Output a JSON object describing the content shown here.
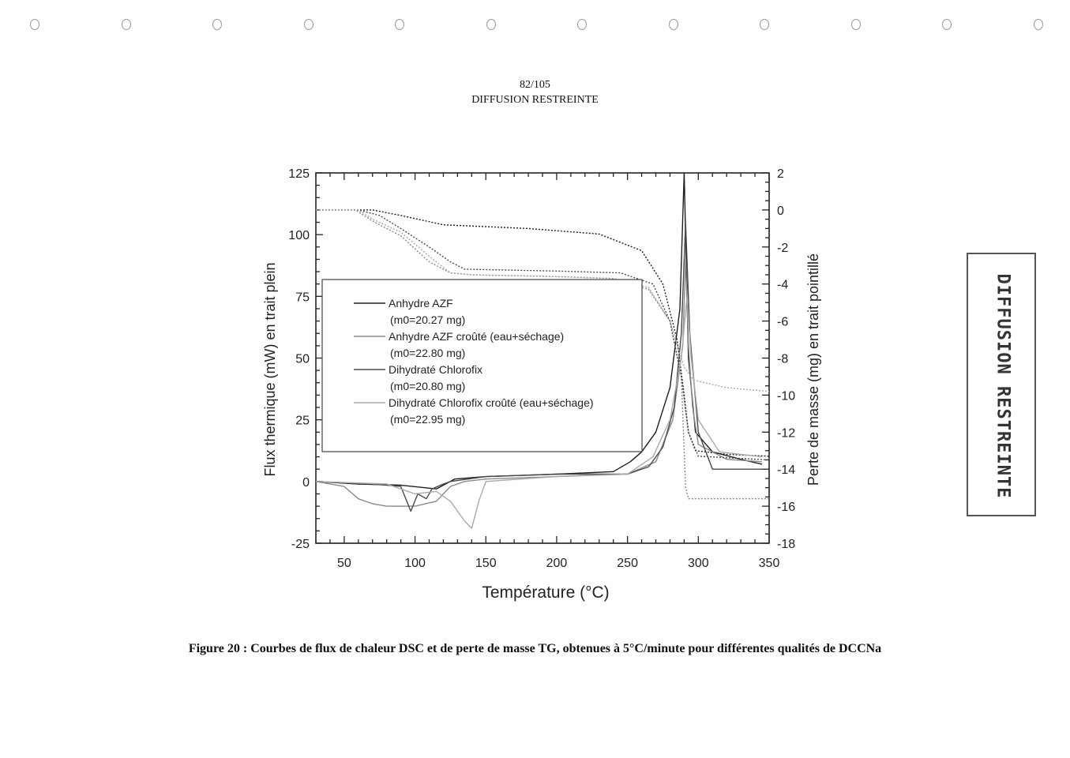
{
  "page": {
    "number": "82/105",
    "header": "DIFFUSION RESTREINTE",
    "stamp": "DIFFUSION RESTREINTE",
    "caption": "Figure 20 : Courbes de flux de chaleur DSC et de perte de masse TG, obtenues à 5°C/minute pour différentes qualités de DCCNa"
  },
  "chart_data": {
    "type": "line",
    "xlabel": "Température (°C)",
    "ylabel_left": "Flux thermique (mW) en trait plein",
    "ylabel_right": "Perte de masse (mg) en trait pointillé",
    "xlim": [
      30,
      350
    ],
    "ylim_left": [
      -25,
      125
    ],
    "ylim_right": [
      -18,
      2
    ],
    "x_ticks": [
      50,
      100,
      150,
      200,
      250,
      300,
      350
    ],
    "y_left_ticks": [
      -25,
      0,
      25,
      50,
      75,
      100,
      125
    ],
    "y_right_ticks": [
      -18,
      -16,
      -14,
      -12,
      -10,
      -8,
      -6,
      -4,
      -2,
      0,
      2
    ],
    "grid": false,
    "legend_position": "center",
    "series": [
      {
        "name": "Anhydre AZF",
        "sample_mass": "(m0=20.27 mg)",
        "color": "#1e1e1e",
        "dsc": [
          [
            30,
            0
          ],
          [
            60,
            -1
          ],
          [
            90,
            -1.5
          ],
          [
            115,
            -3
          ],
          [
            128,
            1
          ],
          [
            150,
            2
          ],
          [
            200,
            3
          ],
          [
            240,
            4
          ],
          [
            252,
            8
          ],
          [
            260,
            12
          ],
          [
            270,
            20
          ],
          [
            280,
            38
          ],
          [
            287,
            70
          ],
          [
            290,
            125
          ],
          [
            293,
            50
          ],
          [
            298,
            20
          ],
          [
            310,
            12
          ],
          [
            330,
            9
          ],
          [
            345,
            7
          ]
        ],
        "tg": [
          [
            30,
            0
          ],
          [
            70,
            0
          ],
          [
            90,
            -0.3
          ],
          [
            120,
            -0.8
          ],
          [
            180,
            -1
          ],
          [
            230,
            -1.3
          ],
          [
            260,
            -2.2
          ],
          [
            275,
            -4
          ],
          [
            285,
            -7
          ],
          [
            290,
            -10
          ],
          [
            293,
            -12
          ],
          [
            298,
            -13
          ],
          [
            320,
            -13.2
          ],
          [
            350,
            -13.3
          ]
        ]
      },
      {
        "name": "Anhydre AZF croûté (eau+séchage)",
        "sample_mass": "(m0=22.80 mg)",
        "color": "#8a8a8a",
        "dsc": [
          [
            30,
            0
          ],
          [
            50,
            -2
          ],
          [
            60,
            -7
          ],
          [
            70,
            -9
          ],
          [
            80,
            -10
          ],
          [
            100,
            -10
          ],
          [
            115,
            -8
          ],
          [
            125,
            -2
          ],
          [
            135,
            0
          ],
          [
            150,
            1
          ],
          [
            200,
            2
          ],
          [
            250,
            3
          ],
          [
            270,
            8
          ],
          [
            282,
            25
          ],
          [
            289,
            55
          ],
          [
            291,
            90
          ],
          [
            293,
            55
          ],
          [
            296,
            30
          ],
          [
            300,
            15
          ],
          [
            320,
            9
          ],
          [
            345,
            8
          ]
        ],
        "tg": [
          [
            30,
            0
          ],
          [
            58,
            0
          ],
          [
            70,
            -0.6
          ],
          [
            90,
            -1.4
          ],
          [
            110,
            -2.8
          ],
          [
            125,
            -3.4
          ],
          [
            140,
            -3.5
          ],
          [
            200,
            -3.6
          ],
          [
            240,
            -3.7
          ],
          [
            265,
            -4.3
          ],
          [
            280,
            -6
          ],
          [
            288,
            -9
          ],
          [
            291,
            -15
          ],
          [
            293,
            -15.6
          ],
          [
            350,
            -15.6
          ]
        ]
      },
      {
        "name": "Dihydraté Chlorofix",
        "sample_mass": "(m0=20.80 mg)",
        "color": "#4a4a4a",
        "dsc": [
          [
            30,
            0
          ],
          [
            70,
            -1
          ],
          [
            90,
            -2
          ],
          [
            97,
            -12
          ],
          [
            102,
            -5
          ],
          [
            108,
            -7
          ],
          [
            112,
            -3
          ],
          [
            120,
            -1
          ],
          [
            125,
            0
          ],
          [
            150,
            2
          ],
          [
            200,
            3
          ],
          [
            250,
            3
          ],
          [
            265,
            6
          ],
          [
            275,
            14
          ],
          [
            283,
            30
          ],
          [
            288,
            60
          ],
          [
            291,
            105
          ],
          [
            294,
            60
          ],
          [
            300,
            20
          ],
          [
            310,
            5
          ],
          [
            345,
            5
          ]
        ],
        "tg": [
          [
            30,
            0
          ],
          [
            60,
            0
          ],
          [
            75,
            -0.3
          ],
          [
            90,
            -1
          ],
          [
            110,
            -2
          ],
          [
            125,
            -2.8
          ],
          [
            135,
            -3.2
          ],
          [
            200,
            -3.3
          ],
          [
            245,
            -3.4
          ],
          [
            268,
            -4
          ],
          [
            280,
            -6
          ],
          [
            288,
            -9
          ],
          [
            293,
            -12
          ],
          [
            300,
            -13.3
          ],
          [
            350,
            -13.5
          ]
        ]
      },
      {
        "name": "Dihydraté Chlorofix croûté (eau+séchage)",
        "sample_mass": "(m0=22.95 mg)",
        "color": "#aaaaaa",
        "dsc": [
          [
            30,
            0
          ],
          [
            80,
            -1
          ],
          [
            100,
            -5
          ],
          [
            115,
            -4
          ],
          [
            125,
            -8
          ],
          [
            135,
            -16
          ],
          [
            140,
            -19
          ],
          [
            145,
            -8
          ],
          [
            150,
            0
          ],
          [
            200,
            2
          ],
          [
            250,
            3
          ],
          [
            268,
            10
          ],
          [
            280,
            25
          ],
          [
            288,
            50
          ],
          [
            292,
            75
          ],
          [
            295,
            50
          ],
          [
            300,
            25
          ],
          [
            315,
            12
          ],
          [
            345,
            10
          ]
        ],
        "tg": [
          [
            30,
            0
          ],
          [
            60,
            0
          ],
          [
            70,
            -0.5
          ],
          [
            90,
            -1.2
          ],
          [
            110,
            -2.5
          ],
          [
            125,
            -3.4
          ],
          [
            140,
            -3.5
          ],
          [
            200,
            -3.6
          ],
          [
            240,
            -3.7
          ],
          [
            265,
            -4.2
          ],
          [
            280,
            -6
          ],
          [
            290,
            -8.5
          ],
          [
            297,
            -9.2
          ],
          [
            320,
            -9.6
          ],
          [
            350,
            -9.8
          ]
        ]
      }
    ]
  }
}
